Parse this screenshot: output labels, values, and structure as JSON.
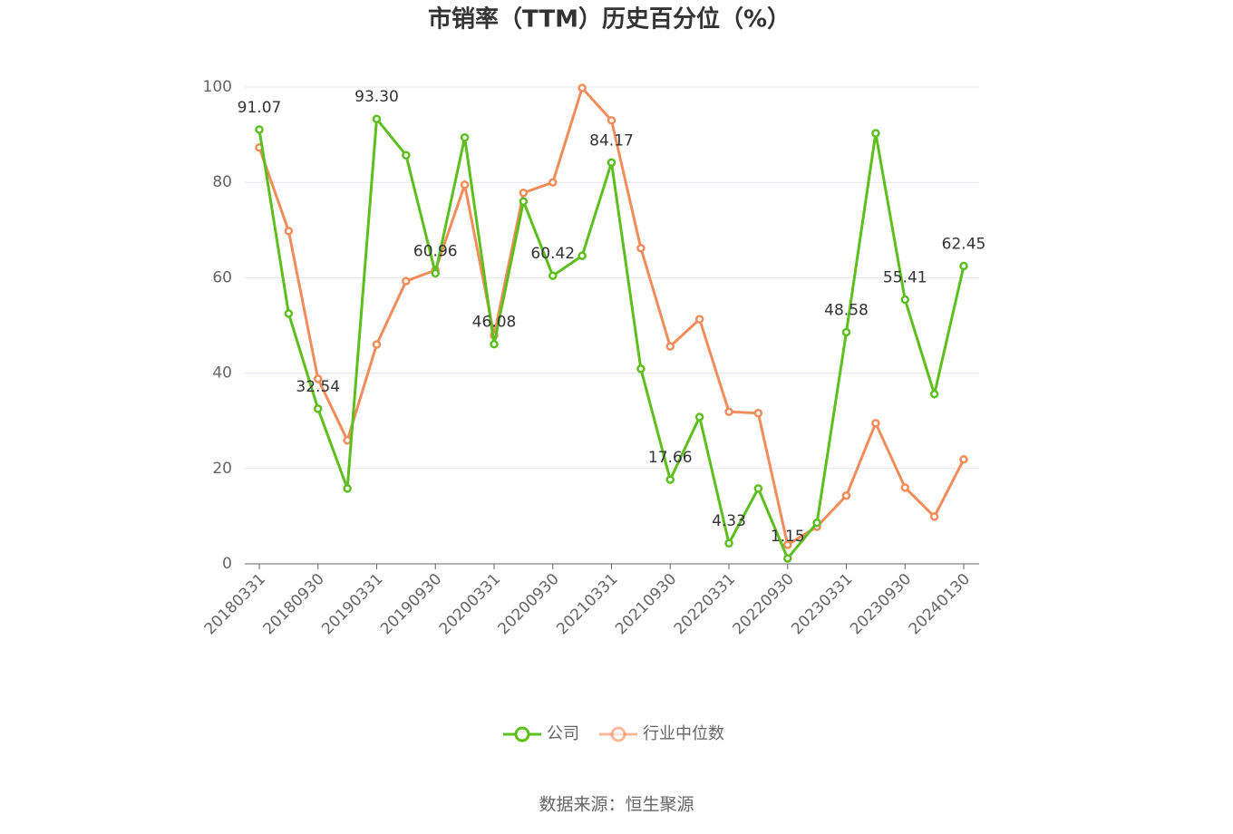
{
  "chart_data": {
    "type": "line",
    "title": "市销率（TTM）历史百分位（%）",
    "categories": [
      "20180331",
      null,
      "20180930",
      null,
      "20190331",
      null,
      "20190930",
      null,
      "20200331",
      null,
      "20200930",
      null,
      "20210331",
      null,
      "20210930",
      null,
      "20220331",
      null,
      "20220930",
      null,
      "20230331",
      null,
      "20230930",
      null,
      "20240130"
    ],
    "series": [
      {
        "name": "公司",
        "color": "#5cbf1e",
        "values": [
          91.07,
          52.5,
          32.54,
          15.8,
          93.3,
          85.7,
          60.96,
          89.4,
          46.08,
          76.0,
          60.42,
          64.6,
          84.17,
          40.9,
          17.66,
          30.8,
          4.33,
          15.8,
          1.15,
          8.6,
          48.58,
          90.3,
          55.41,
          35.6,
          62.45
        ],
        "value_labels": [
          "91.07",
          null,
          "32.54",
          null,
          "93.30",
          null,
          "60.96",
          null,
          "46.08",
          null,
          "60.42",
          null,
          "84.17",
          null,
          "17.66",
          null,
          "4.33",
          null,
          "1.15",
          null,
          "48.58",
          null,
          "55.41",
          null,
          "62.45"
        ]
      },
      {
        "name": "行业中位数",
        "color": "#f28c5a",
        "values": [
          87.3,
          69.8,
          38.8,
          25.9,
          46.0,
          59.3,
          61.6,
          79.5,
          47.9,
          77.8,
          80.0,
          99.8,
          93.0,
          66.2,
          45.6,
          51.3,
          31.9,
          31.6,
          4.0,
          7.8,
          14.3,
          29.5,
          16.0,
          9.9,
          21.9
        ]
      }
    ],
    "ylim": [
      0,
      100
    ],
    "yticks": [
      0,
      20,
      40,
      60,
      80,
      100
    ],
    "grid": true,
    "legend": "bottom",
    "source": "数据来源：恒生聚源"
  }
}
